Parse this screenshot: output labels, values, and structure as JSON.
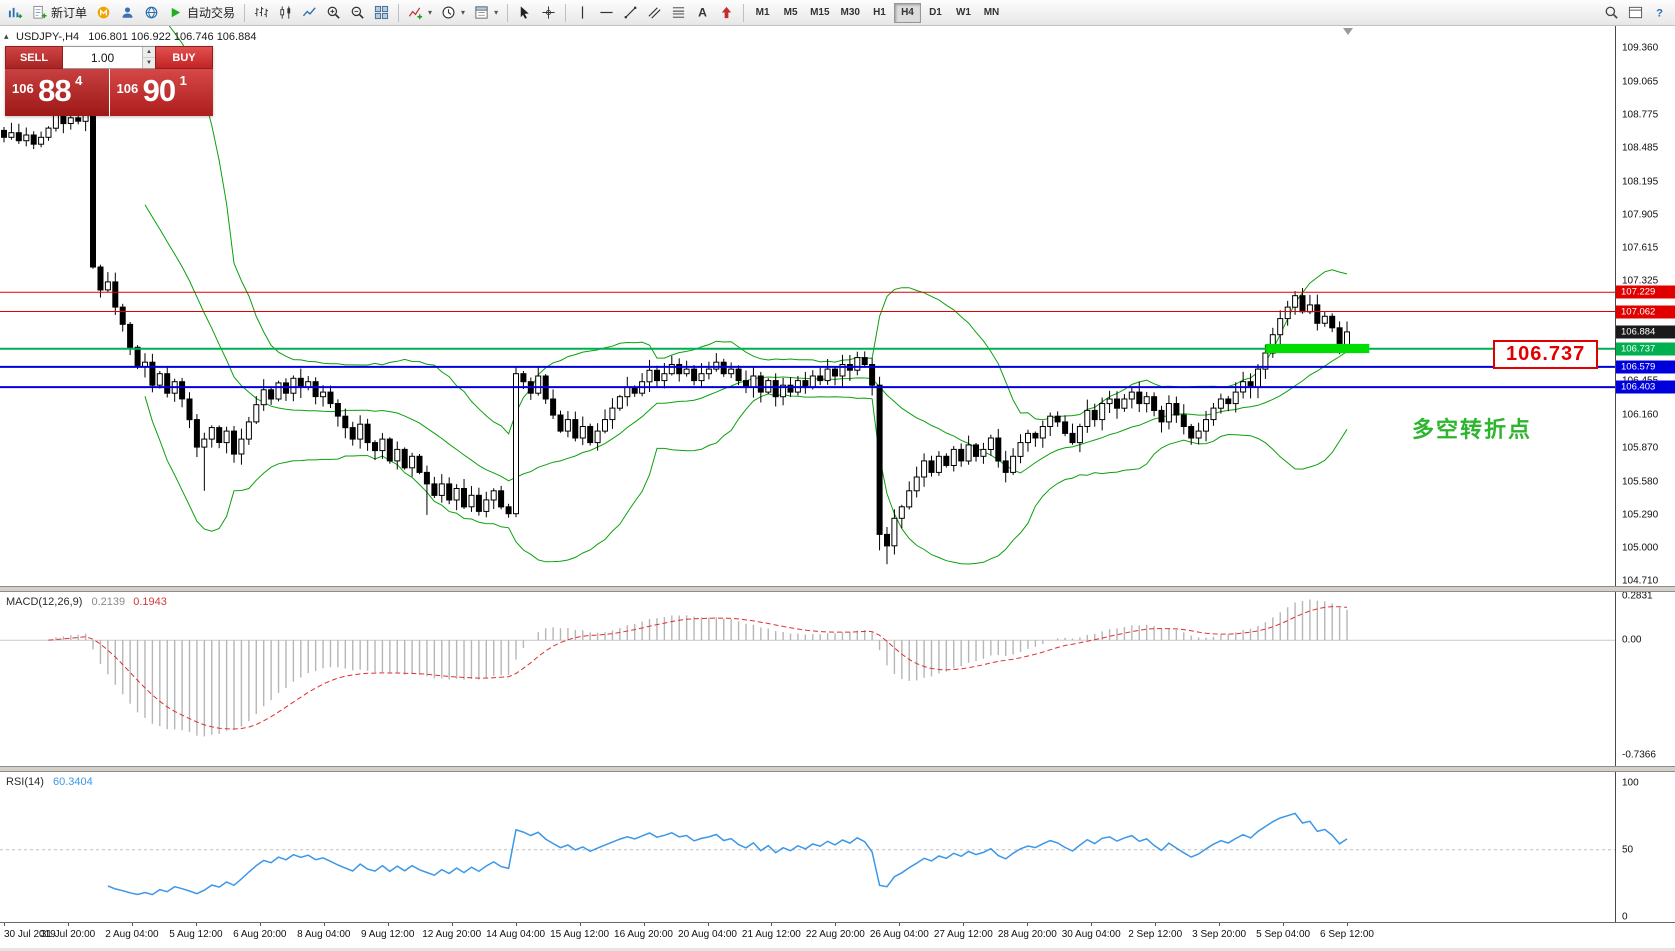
{
  "toolbar": {
    "new_order_label": "新订单",
    "autotrading_label": "自动交易",
    "timeframes": [
      "M1",
      "M5",
      "M15",
      "M30",
      "H1",
      "H4",
      "D1",
      "W1",
      "MN"
    ],
    "active_timeframe": "H4"
  },
  "chart": {
    "symbol_period": "USDJPY-,H4",
    "ohlc": "106.801 106.922 106.746 106.884",
    "colors": {
      "bollinger": "#0ca00c",
      "bull": "#ffffff",
      "bear": "#000000",
      "wick": "#000000",
      "macd_hist": "#b6b6b6",
      "macd_signal": "#e03030",
      "rsi_line": "#3b97e8"
    }
  },
  "trade": {
    "sell_label": "SELL",
    "buy_label": "BUY",
    "volume": "1.00",
    "bid": {
      "whole": "106",
      "big": "88",
      "pip": "4"
    },
    "ask": {
      "whole": "106",
      "big": "90",
      "pip": "1"
    }
  },
  "annotations": {
    "price_box_text": "106.737",
    "cn_text": "多空转折点"
  },
  "price_axis": {
    "min": 104.67,
    "max": 109.55,
    "labels": [
      "109.360",
      "109.065",
      "108.775",
      "108.485",
      "108.195",
      "107.905",
      "107.615",
      "107.325",
      "107.035",
      "106.745",
      "106.455",
      "106.160",
      "105.870",
      "105.580",
      "105.290",
      "105.000",
      "104.710"
    ]
  },
  "levels": [
    {
      "price": 107.229,
      "label": "107.229",
      "color": "#e00000",
      "width": 1
    },
    {
      "price": 107.062,
      "label": "107.062",
      "color": "#e00000",
      "width": 1
    },
    {
      "price": 106.737,
      "label": "106.737",
      "color": "#00b050",
      "width": 2
    },
    {
      "price": 106.579,
      "label": "106.579",
      "color": "#0000dd",
      "width": 2
    },
    {
      "price": 106.403,
      "label": "106.403",
      "color": "#0000dd",
      "width": 2
    }
  ],
  "current_price": {
    "price": 106.884,
    "label": "106.884",
    "bg": "#1a1a1a"
  },
  "zone": {
    "from_bar": 170,
    "to_bar": 184,
    "top_price": 106.78,
    "bottom_price": 106.7,
    "color": "#00dd00"
  },
  "time_labels": [
    "30 Jul 2019",
    "31 Jul 20:00",
    "2 Aug 04:00",
    "5 Aug 12:00",
    "6 Aug 20:00",
    "8 Aug 04:00",
    "9 Aug 12:00",
    "12 Aug 20:00",
    "14 Aug 04:00",
    "15 Aug 12:00",
    "16 Aug 20:00",
    "20 Aug 04:00",
    "21 Aug 12:00",
    "22 Aug 20:00",
    "26 Aug 04:00",
    "27 Aug 12:00",
    "28 Aug 20:00",
    "30 Aug 04:00",
    "2 Sep 12:00",
    "3 Sep 20:00",
    "5 Sep 04:00",
    "6 Sep 12:00"
  ],
  "chart_data": {
    "type": "candlestick",
    "symbol": "USDJPY",
    "period": "H4",
    "closes": [
      108.58,
      108.62,
      108.55,
      108.6,
      108.52,
      108.58,
      108.66,
      108.78,
      108.7,
      108.75,
      108.72,
      108.78,
      107.45,
      107.25,
      107.32,
      107.1,
      106.95,
      106.75,
      106.58,
      106.62,
      106.42,
      106.52,
      106.35,
      106.45,
      106.3,
      106.12,
      105.88,
      105.95,
      106.05,
      105.92,
      106.02,
      105.82,
      105.95,
      106.1,
      106.25,
      106.38,
      106.3,
      106.44,
      106.35,
      106.48,
      106.4,
      106.45,
      106.32,
      106.36,
      106.26,
      106.15,
      106.05,
      105.95,
      106.08,
      105.92,
      105.85,
      105.95,
      105.76,
      105.86,
      105.7,
      105.8,
      105.66,
      105.56,
      105.46,
      105.56,
      105.42,
      105.52,
      105.36,
      105.46,
      105.32,
      105.42,
      105.5,
      105.36,
      105.3,
      106.52,
      106.45,
      106.35,
      106.5,
      106.3,
      106.16,
      106.02,
      106.12,
      105.96,
      106.06,
      105.92,
      106.02,
      106.12,
      106.22,
      106.32,
      106.4,
      106.35,
      106.45,
      106.55,
      106.46,
      106.52,
      106.6,
      106.52,
      106.56,
      106.46,
      106.52,
      106.56,
      106.62,
      106.52,
      106.56,
      106.46,
      106.4,
      106.5,
      106.36,
      106.46,
      106.32,
      106.42,
      106.36,
      106.46,
      106.4,
      106.5,
      106.46,
      106.56,
      106.5,
      106.6,
      106.55,
      106.66,
      106.6,
      106.42,
      105.12,
      105.02,
      105.26,
      105.36,
      105.5,
      105.62,
      105.76,
      105.66,
      105.8,
      105.72,
      105.86,
      105.76,
      105.9,
      105.8,
      105.86,
      105.96,
      105.76,
      105.66,
      105.8,
      105.92,
      106.0,
      105.96,
      106.06,
      106.15,
      106.1,
      106.0,
      105.92,
      106.06,
      106.2,
      106.12,
      106.26,
      106.3,
      106.22,
      106.3,
      106.36,
      106.26,
      106.32,
      106.2,
      106.1,
      106.26,
      106.16,
      106.06,
      105.96,
      106.02,
      106.12,
      106.22,
      106.3,
      106.26,
      106.36,
      106.45,
      106.4,
      106.56,
      106.7,
      106.86,
      107.0,
      107.1,
      107.2,
      107.06,
      107.12,
      106.96,
      107.02,
      106.92,
      106.76,
      106.884
    ],
    "spikes": [
      {
        "i": 12,
        "high": 108.82
      },
      {
        "i": 27,
        "low": 105.5
      },
      {
        "i": 57,
        "low": 105.29
      },
      {
        "i": 69,
        "low": 105.27
      },
      {
        "i": 118,
        "low": 104.98
      },
      {
        "i": 119,
        "low": 104.86
      },
      {
        "i": 174,
        "high": 107.24
      }
    ],
    "bollinger": {
      "period": 20,
      "deviation": 2
    },
    "macd": {
      "fast": 12,
      "slow": 26,
      "signal": 9,
      "header": "MACD(12,26,9)",
      "value_main": "0.2139",
      "value_signal": "0.1943",
      "range": [
        -0.81,
        0.31
      ],
      "scale_labels": [
        {
          "text": "0.2831",
          "v": 0.2831
        },
        {
          "text": "0.00",
          "v": 0
        },
        {
          "text": "-0.7366",
          "v": -0.7366
        }
      ]
    },
    "rsi": {
      "period": 14,
      "header": "RSI(14)",
      "value": "60.3404",
      "range": [
        -4,
        108
      ],
      "level": 50,
      "scale_labels": [
        {
          "text": "100",
          "v": 100
        },
        {
          "text": "50",
          "v": 50
        },
        {
          "text": "0",
          "v": 0
        }
      ]
    }
  }
}
